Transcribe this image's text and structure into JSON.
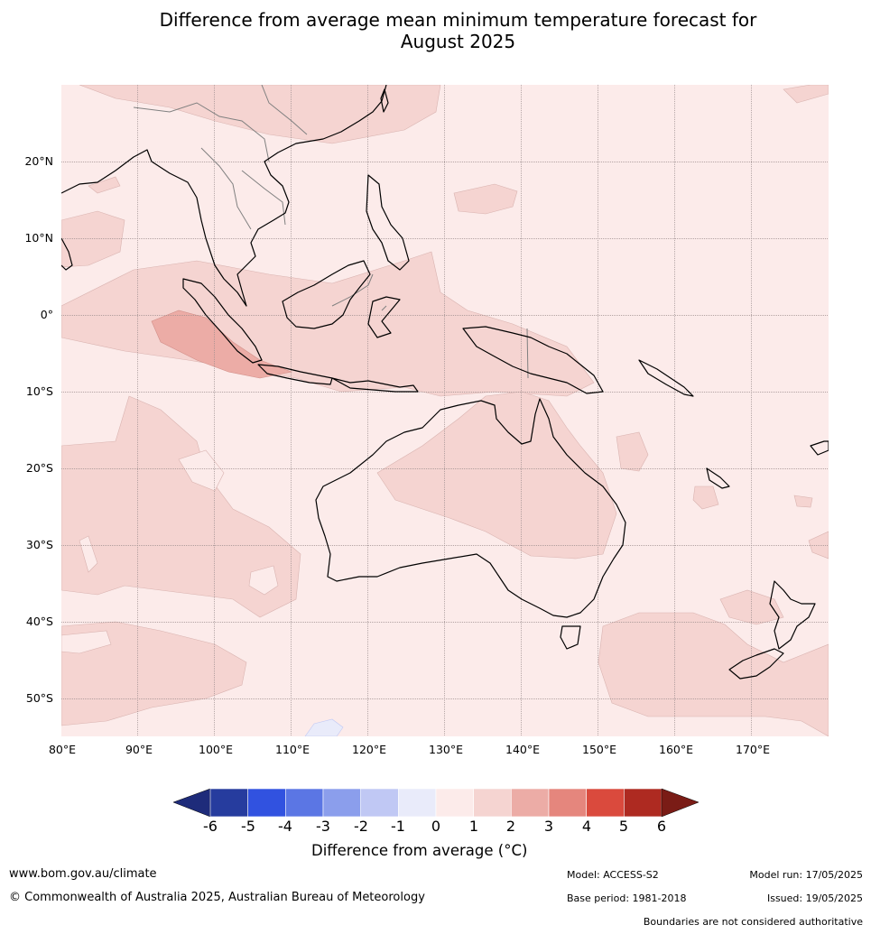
{
  "title_line1": "Difference from average mean minimum temperature forecast for",
  "title_line2": "August 2025",
  "lat_labels": [
    "20°N",
    "10°N",
    "0°",
    "10°S",
    "20°S",
    "30°S",
    "40°S",
    "50°S"
  ],
  "lon_labels": [
    "80°E",
    "90°E",
    "100°E",
    "110°E",
    "120°E",
    "130°E",
    "140°E",
    "150°E",
    "160°E",
    "170°E"
  ],
  "colorbar": {
    "ticks": [
      "-6",
      "-5",
      "-4",
      "-3",
      "-2",
      "-1",
      "0",
      "1",
      "2",
      "3",
      "4",
      "5",
      "6"
    ],
    "colors": [
      "#263c9e",
      "#3152e0",
      "#5b76e4",
      "#8b9eec",
      "#c0c8f4",
      "#e9ebfa",
      "#fcebea",
      "#f5d4d1",
      "#ecaca6",
      "#e5867d",
      "#da4a3d",
      "#ae2a21"
    ],
    "low_extend_color": "#1e2b7a",
    "high_extend_color": "#7a1c16",
    "label_prefix": "Difference from average (",
    "label_unit": "°C",
    "label_suffix": ")"
  },
  "palette": {
    "background": "#fcebea",
    "band_1_2": "#f5d4d1",
    "band_2_3": "#ecaca6",
    "band_neg": "#e9ebfa",
    "land_outline": "#000000",
    "border": "#808080"
  },
  "footer": {
    "url": "www.bom.gov.au/climate",
    "copyright": "© Commonwealth of Australia 2025, Australian Bureau of Meteorology",
    "model": "Model: ACCESS-S2",
    "model_run": "Model run: 17/05/2025",
    "base_period": "Base period: 1981-2018",
    "issued": "Issued: 19/05/2025",
    "disclaimer": "Boundaries are not considered authoritative"
  }
}
